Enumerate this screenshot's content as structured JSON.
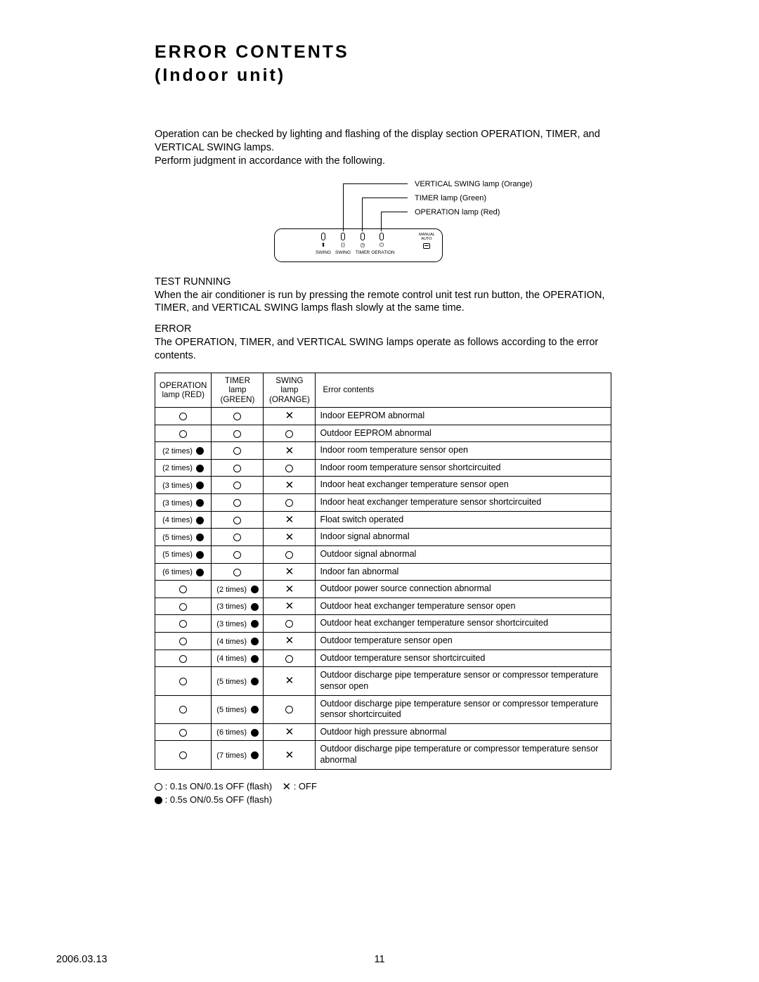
{
  "title1": "ERROR CONTENTS",
  "title2": "(Indoor unit)",
  "intro_line1": "Operation can be checked by lighting and flashing of the display section OPERATION, TIMER, and VERTICAL SWING lamps.",
  "intro_line2": "Perform judgment in accordance with the following.",
  "diagram": {
    "desc_swing": "VERTICAL SWING lamp (Orange)",
    "desc_timer": "TIMER lamp (Green)",
    "desc_operation": "OPERATION lamp (Red)",
    "lbl_swing1": "SWING",
    "lbl_swing2": "SWING",
    "lbl_timer": "TIMER",
    "lbl_operation": "OERATION",
    "lbl_manual": "MANUAL",
    "lbl_auto": "AUTO"
  },
  "test_running": {
    "head": "TEST RUNNING",
    "body": "When the air conditioner is run by pressing the remote control unit test run button, the OPERATION, TIMER, and VERTICAL SWING lamps flash slowly at the same time."
  },
  "error_section": {
    "head": "ERROR",
    "body": "The OPERATION, TIMER, and VERTICAL SWING lamps operate as follows according to the error contents."
  },
  "table": {
    "headers": {
      "op1": "OPERATION",
      "op2": "lamp (RED)",
      "timer1": "TIMER lamp",
      "timer2": "(GREEN)",
      "swing1": "SWING lamp",
      "swing2": "(ORANGE)",
      "content": "Error contents"
    },
    "rows": [
      {
        "op": {
          "type": "open"
        },
        "timer": {
          "type": "open"
        },
        "swing": {
          "type": "x"
        },
        "content": "Indoor EEPROM abnormal"
      },
      {
        "op": {
          "type": "open"
        },
        "timer": {
          "type": "open"
        },
        "swing": {
          "type": "open"
        },
        "content": "Outdoor EEPROM abnormal"
      },
      {
        "op": {
          "type": "filled",
          "times": "(2 times)"
        },
        "timer": {
          "type": "open"
        },
        "swing": {
          "type": "x"
        },
        "content": "Indoor room temperature sensor open"
      },
      {
        "op": {
          "type": "filled",
          "times": "(2 times)"
        },
        "timer": {
          "type": "open"
        },
        "swing": {
          "type": "open"
        },
        "content": "Indoor room temperature sensor shortcircuited"
      },
      {
        "op": {
          "type": "filled",
          "times": "(3 times)"
        },
        "timer": {
          "type": "open"
        },
        "swing": {
          "type": "x"
        },
        "content": "Indoor heat exchanger temperature sensor open"
      },
      {
        "op": {
          "type": "filled",
          "times": "(3 times)"
        },
        "timer": {
          "type": "open"
        },
        "swing": {
          "type": "open"
        },
        "content": "Indoor heat exchanger temperature sensor shortcircuited"
      },
      {
        "op": {
          "type": "filled",
          "times": "(4 times)"
        },
        "timer": {
          "type": "open"
        },
        "swing": {
          "type": "x"
        },
        "content": "Float switch operated"
      },
      {
        "op": {
          "type": "filled",
          "times": "(5 times)"
        },
        "timer": {
          "type": "open"
        },
        "swing": {
          "type": "x"
        },
        "content": "Indoor signal abnormal"
      },
      {
        "op": {
          "type": "filled",
          "times": "(5 times)"
        },
        "timer": {
          "type": "open"
        },
        "swing": {
          "type": "open"
        },
        "content": "Outdoor signal abnormal"
      },
      {
        "op": {
          "type": "filled",
          "times": "(6 times)"
        },
        "timer": {
          "type": "open"
        },
        "swing": {
          "type": "x"
        },
        "content": "Indoor fan abnormal"
      },
      {
        "op": {
          "type": "open"
        },
        "timer": {
          "type": "filled",
          "times": "(2 times)"
        },
        "swing": {
          "type": "x"
        },
        "content": "Outdoor power source connection abnormal"
      },
      {
        "op": {
          "type": "open"
        },
        "timer": {
          "type": "filled",
          "times": "(3 times)"
        },
        "swing": {
          "type": "x"
        },
        "content": "Outdoor heat exchanger temperature sensor open"
      },
      {
        "op": {
          "type": "open"
        },
        "timer": {
          "type": "filled",
          "times": "(3 times)"
        },
        "swing": {
          "type": "open"
        },
        "content": "Outdoor heat exchanger temperature sensor shortcircuited"
      },
      {
        "op": {
          "type": "open"
        },
        "timer": {
          "type": "filled",
          "times": "(4 times)"
        },
        "swing": {
          "type": "x"
        },
        "content": "Outdoor temperature sensor open"
      },
      {
        "op": {
          "type": "open"
        },
        "timer": {
          "type": "filled",
          "times": "(4 times)"
        },
        "swing": {
          "type": "open"
        },
        "content": "Outdoor temperature sensor shortcircuited"
      },
      {
        "op": {
          "type": "open"
        },
        "timer": {
          "type": "filled",
          "times": "(5 times)"
        },
        "swing": {
          "type": "x"
        },
        "content": "Outdoor discharge pipe temperature sensor or compressor temperature sensor open"
      },
      {
        "op": {
          "type": "open"
        },
        "timer": {
          "type": "filled",
          "times": "(5 times)"
        },
        "swing": {
          "type": "open"
        },
        "content": "Outdoor discharge pipe temperature sensor or compressor temperature sensor shortcircuited"
      },
      {
        "op": {
          "type": "open"
        },
        "timer": {
          "type": "filled",
          "times": "(6 times)"
        },
        "swing": {
          "type": "x"
        },
        "content": "Outdoor high pressure abnormal"
      },
      {
        "op": {
          "type": "open"
        },
        "timer": {
          "type": "filled",
          "times": "(7 times)"
        },
        "swing": {
          "type": "x"
        },
        "content": "Outdoor discharge pipe temperature or compressor temperature sensor abnormal"
      }
    ]
  },
  "legend": {
    "open_label": " : 0.1s ON/0.1s OFF (flash)",
    "x_label": " : OFF",
    "filled_label": " : 0.5s ON/0.5s OFF (flash)"
  },
  "footer": {
    "date": "2006.03.13",
    "page": "11"
  }
}
